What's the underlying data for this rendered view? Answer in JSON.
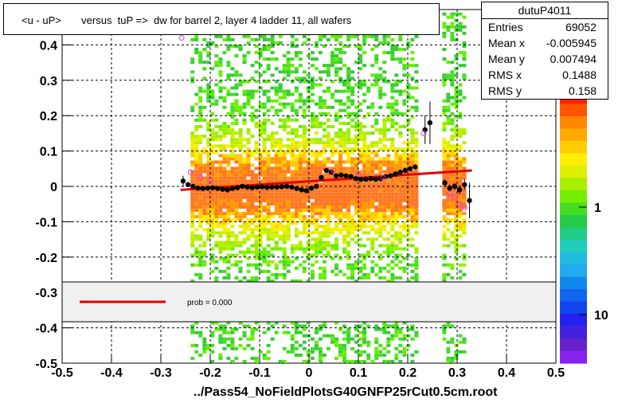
{
  "title": "<u - uP>       versus  tuP =>  dw for barrel 2, layer 4 ladder 11, all wafers",
  "footer": "../Pass54_NoFieldPlotsG40GNFP25rCut0.5cm.root",
  "stats": {
    "name": "dutuP4011",
    "rows": [
      {
        "label": "Entries",
        "value": "69052"
      },
      {
        "label": "Mean x",
        "value": "-0.005945"
      },
      {
        "label": "Mean y",
        "value": "0.007494"
      },
      {
        "label": "RMS x",
        "value": "0.1488"
      },
      {
        "label": "RMS y",
        "value": "0.158"
      }
    ]
  },
  "legend": {
    "fit_label": "prob = 0.000"
  },
  "colors": {
    "fit": "#e00000",
    "profile": "#000000",
    "secondary": "#e040e0",
    "legend_bg": "#f0f0f0"
  },
  "chart_data": {
    "type": "heatmap",
    "title": "<u - uP>       versus  tuP =>  dw for barrel 2, layer 4 ladder 11, all wafers",
    "xlim": [
      -0.5,
      0.5
    ],
    "ylim": [
      -0.5,
      0.5
    ],
    "x_ticks": [
      "-0.5",
      "-0.4",
      "-0.3",
      "-0.2",
      "-0.1",
      "0",
      "0.1",
      "0.2",
      "0.3",
      "0.4",
      "0.5"
    ],
    "y_ticks": [
      "-0.5",
      "-0.4",
      "-0.3",
      "-0.2",
      "-0.1",
      "0",
      "0.1",
      "0.2",
      "0.3",
      "0.4",
      "0.5"
    ],
    "colorbar_ticks": [
      "1",
      "10"
    ],
    "z_scale": "log",
    "grid": true,
    "occupied_x_ranges": [
      [
        -0.24,
        0.22
      ],
      [
        0.27,
        0.315
      ]
    ],
    "profile": {
      "x": [
        -0.255,
        -0.245,
        -0.235,
        -0.225,
        -0.215,
        -0.205,
        -0.195,
        -0.185,
        -0.175,
        -0.165,
        -0.155,
        -0.145,
        -0.135,
        -0.125,
        -0.115,
        -0.105,
        -0.095,
        -0.085,
        -0.075,
        -0.065,
        -0.055,
        -0.045,
        -0.035,
        -0.025,
        -0.015,
        -0.005,
        0.005,
        0.015,
        0.025,
        0.035,
        0.045,
        0.055,
        0.065,
        0.075,
        0.085,
        0.095,
        0.105,
        0.115,
        0.125,
        0.135,
        0.145,
        0.155,
        0.165,
        0.175,
        0.185,
        0.195,
        0.205,
        0.215,
        0.235,
        0.245,
        0.275,
        0.285,
        0.295,
        0.305,
        0.315,
        0.325
      ],
      "y": [
        0.015,
        0.005,
        0.0,
        -0.005,
        -0.006,
        -0.005,
        -0.004,
        -0.006,
        -0.008,
        -0.01,
        -0.006,
        -0.004,
        0.0,
        -0.002,
        -0.004,
        -0.002,
        -0.001,
        -0.003,
        -0.002,
        -0.002,
        -0.001,
        0.0,
        -0.002,
        -0.006,
        -0.01,
        -0.012,
        -0.005,
        0.0,
        0.025,
        0.045,
        0.04,
        0.03,
        0.032,
        0.03,
        0.028,
        0.022,
        0.02,
        0.02,
        0.022,
        0.02,
        0.022,
        0.028,
        0.03,
        0.035,
        0.04,
        0.045,
        0.05,
        0.055,
        0.16,
        0.18,
        0.01,
        -0.005,
        0.0,
        -0.01,
        0.005,
        -0.04
      ],
      "yerr": [
        0.015,
        0.006,
        0.005,
        0.005,
        0.005,
        0.004,
        0.004,
        0.004,
        0.004,
        0.004,
        0.004,
        0.004,
        0.004,
        0.004,
        0.004,
        0.004,
        0.004,
        0.004,
        0.004,
        0.004,
        0.004,
        0.004,
        0.004,
        0.004,
        0.004,
        0.004,
        0.005,
        0.006,
        0.006,
        0.005,
        0.005,
        0.005,
        0.005,
        0.005,
        0.005,
        0.005,
        0.005,
        0.005,
        0.005,
        0.005,
        0.005,
        0.005,
        0.005,
        0.005,
        0.005,
        0.006,
        0.006,
        0.006,
        0.04,
        0.06,
        0.01,
        0.01,
        0.01,
        0.012,
        0.015,
        0.05
      ]
    },
    "secondary_points": {
      "x": [
        -0.258,
        -0.24,
        -0.22,
        -0.2,
        0.05,
        0.1,
        0.15,
        0.232,
        0.285,
        0.295,
        0.305,
        0.315
      ],
      "y": [
        0.42,
        0.04,
        0.025,
        0.015,
        0.045,
        0.035,
        0.025,
        0.15,
        -0.02,
        -0.03,
        -0.05,
        -0.06
      ]
    },
    "fit_line": {
      "x": [
        -0.26,
        0.33
      ],
      "y": [
        -0.01,
        0.045
      ]
    }
  }
}
